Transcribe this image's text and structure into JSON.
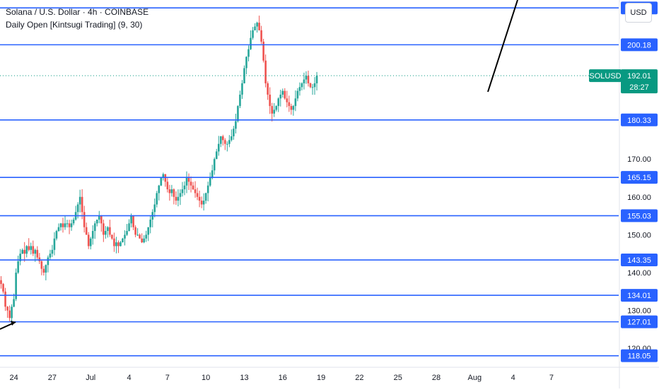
{
  "header": {
    "title": "Solana / U.S. Dollar · 4h · COINBASE",
    "indicator": "Daily Open [Kintsugi Trading] (9, 30)"
  },
  "currency_button": "USD",
  "symbol_label": "SOLUSD",
  "current_price": "192.01",
  "countdown": "28:27",
  "colors": {
    "up": "#26a69a",
    "down": "#ef5350",
    "level_line": "#2962ff",
    "price_tag": "#089981",
    "grid_text": "#131722",
    "axis_line": "#e0e3eb"
  },
  "chart_data": {
    "type": "candlestick",
    "ylim": [
      115,
      212
    ],
    "y_ticks": [
      120,
      130,
      140,
      150,
      160,
      170
    ],
    "y_tick_labels": [
      "120.00",
      "130.00",
      "140.00",
      "150.00",
      "160.00",
      "170.00"
    ],
    "x_tick_labels": [
      "24",
      "27",
      "Jul",
      "4",
      "7",
      "10",
      "13",
      "16",
      "19",
      "22",
      "25",
      "28",
      "Aug",
      "4",
      "7"
    ],
    "x_tick_index": [
      6,
      24,
      42,
      60,
      78,
      96,
      114,
      132,
      150,
      168,
      186,
      204,
      222,
      240,
      258
    ],
    "x_total_slots": 290,
    "levels": [
      {
        "value": 209.91,
        "label": "209.91"
      },
      {
        "value": 200.18,
        "label": "200.18"
      },
      {
        "value": 180.33,
        "label": "180.33"
      },
      {
        "value": 165.15,
        "label": "165.15"
      },
      {
        "value": 155.03,
        "label": "155.03"
      },
      {
        "value": 143.35,
        "label": "143.35"
      },
      {
        "value": 134.01,
        "label": "134.01"
      },
      {
        "value": 127.01,
        "label": "127.01"
      },
      {
        "value": 118.05,
        "label": "118.05"
      }
    ],
    "last_price": 192.01,
    "close_series": [
      137,
      135,
      131,
      130,
      128,
      131,
      133,
      140,
      143,
      145,
      146,
      145,
      147,
      146,
      147,
      145,
      146,
      144,
      143,
      141,
      140,
      142,
      144,
      145,
      146,
      149,
      151,
      152,
      153,
      152,
      153,
      153,
      152,
      153,
      154,
      156,
      158,
      160,
      156,
      152,
      150,
      147,
      149,
      151,
      153,
      154,
      155,
      153,
      150,
      151,
      152,
      150,
      149,
      147,
      148,
      147,
      148,
      149,
      150,
      151,
      153,
      155,
      152,
      150,
      150,
      149,
      148,
      149,
      150,
      152,
      154,
      156,
      158,
      161,
      163,
      165,
      166,
      164,
      162,
      161,
      162,
      160,
      159,
      160,
      161,
      162,
      163,
      165,
      164,
      163,
      162,
      161,
      160,
      159,
      158,
      159,
      161,
      163,
      165,
      167,
      170,
      172,
      174,
      176,
      175,
      174,
      174,
      175,
      176,
      178,
      180,
      184,
      187,
      190,
      194,
      197,
      199,
      202,
      204,
      205,
      206,
      204,
      201,
      196,
      190,
      187,
      184,
      182,
      183,
      184,
      186,
      187,
      188,
      186,
      185,
      184,
      183,
      184,
      186,
      188,
      189,
      190,
      191,
      192,
      190,
      189,
      189,
      190,
      192
    ]
  }
}
